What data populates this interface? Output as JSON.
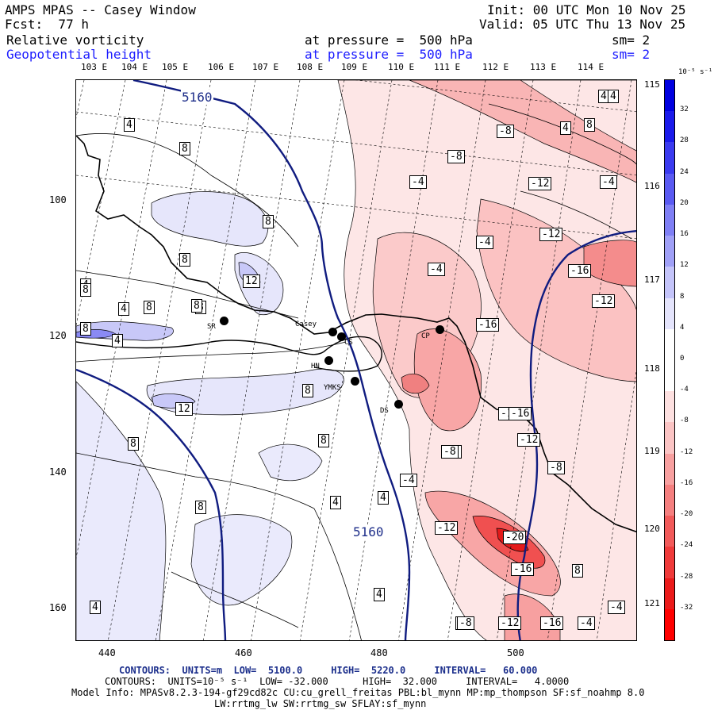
{
  "header": {
    "title": "AMPS MPAS -- Casey Window",
    "fcst": "Fcst:  77 h",
    "init": "Init: 00 UTC Mon 10 Nov 25",
    "valid": "Valid: 05 UTC Thu 13 Nov 25",
    "field1": "Relative vorticity",
    "field1_level": "at pressure =  500 hPa",
    "field1_sm": "sm= 2",
    "field2": "Geopotential height",
    "field2_level": "at pressure =  500 hPa",
    "field2_sm": "sm= 2"
  },
  "top_lon_ticks": [
    "103 E",
    "104 E",
    "105 E",
    "106 E",
    "107 E",
    "108 E",
    "109 E",
    "110 E",
    "111 E",
    "112 E",
    "113 E",
    "114 E"
  ],
  "right_lon_ticks": [
    "115 E",
    "116 E",
    "117 E",
    "118 E",
    "119 E",
    "120 E",
    "121 E"
  ],
  "x_ticks": [
    "440",
    "460",
    "480",
    "500"
  ],
  "y_ticks": [
    "100",
    "120",
    "140",
    "160"
  ],
  "colorbar": {
    "unit": "10⁻⁵ s⁻¹",
    "labels": [
      "32",
      "28",
      "24",
      "20",
      "16",
      "12",
      "8",
      "4",
      "0",
      "-4",
      "-8",
      "-12",
      "-16",
      "-20",
      "-24",
      "-28",
      "-32"
    ],
    "colors": [
      "#0000e0",
      "#1a1aeb",
      "#3a3af0",
      "#5a5af2",
      "#7f7ff5",
      "#a0a0f7",
      "#c4c4fa",
      "#e4e4fc",
      "#ffffff",
      "#ffffff",
      "#fde0e0",
      "#fbc4c4",
      "#f8a0a0",
      "#f57f7f",
      "#f25a5a",
      "#f03a3a",
      "#eb1a1a",
      "#ff0000"
    ]
  },
  "geopotential_labels": [
    "5160",
    "5160"
  ],
  "contour_labels": [
    "4",
    "8",
    "8",
    "4",
    "-8",
    "4",
    "8",
    "-4",
    "-12",
    "-4",
    "-8",
    "8",
    "-4",
    "4",
    "-12",
    "8",
    "-4",
    "-16",
    "12",
    "8",
    "4",
    "-16",
    "-12",
    "4",
    "4",
    "-8",
    "8",
    "8",
    "8",
    "-16",
    "8",
    "8",
    "12",
    "-16",
    "-12",
    "8",
    "-8",
    "-8",
    "-4",
    "4",
    "4",
    "8",
    "8",
    "-12",
    "-20",
    "-16",
    "-8",
    "4",
    "4",
    "-8",
    "-12",
    "-16",
    "-4",
    "-4"
  ],
  "stations": [
    {
      "code": "SR"
    },
    {
      "code": "Casey"
    },
    {
      "code": "CS"
    },
    {
      "code": "HN"
    },
    {
      "code": "YMKS"
    },
    {
      "code": "DS"
    },
    {
      "code": "CP"
    }
  ],
  "footer": {
    "contours_geo": "CONTOURS:  UNITS=m  LOW=  5100.0     HIGH=  5220.0     INTERVAL=   60.000",
    "contours_vort": "CONTOURS:  UNITS=10⁻⁵ s⁻¹  LOW= -32.000      HIGH=  32.000     INTERVAL=   4.0000",
    "model_info": "Model Info: MPASv8.2.3-194-gf29cd82c CU:cu_grell_freitas PBL:bl_mynn MP:mp_thompson SF:sf_noahmp 8.0",
    "model_info2": "LW:rrtmg_lw SW:rrtmg_sw SFLAY:sf_mynn"
  }
}
